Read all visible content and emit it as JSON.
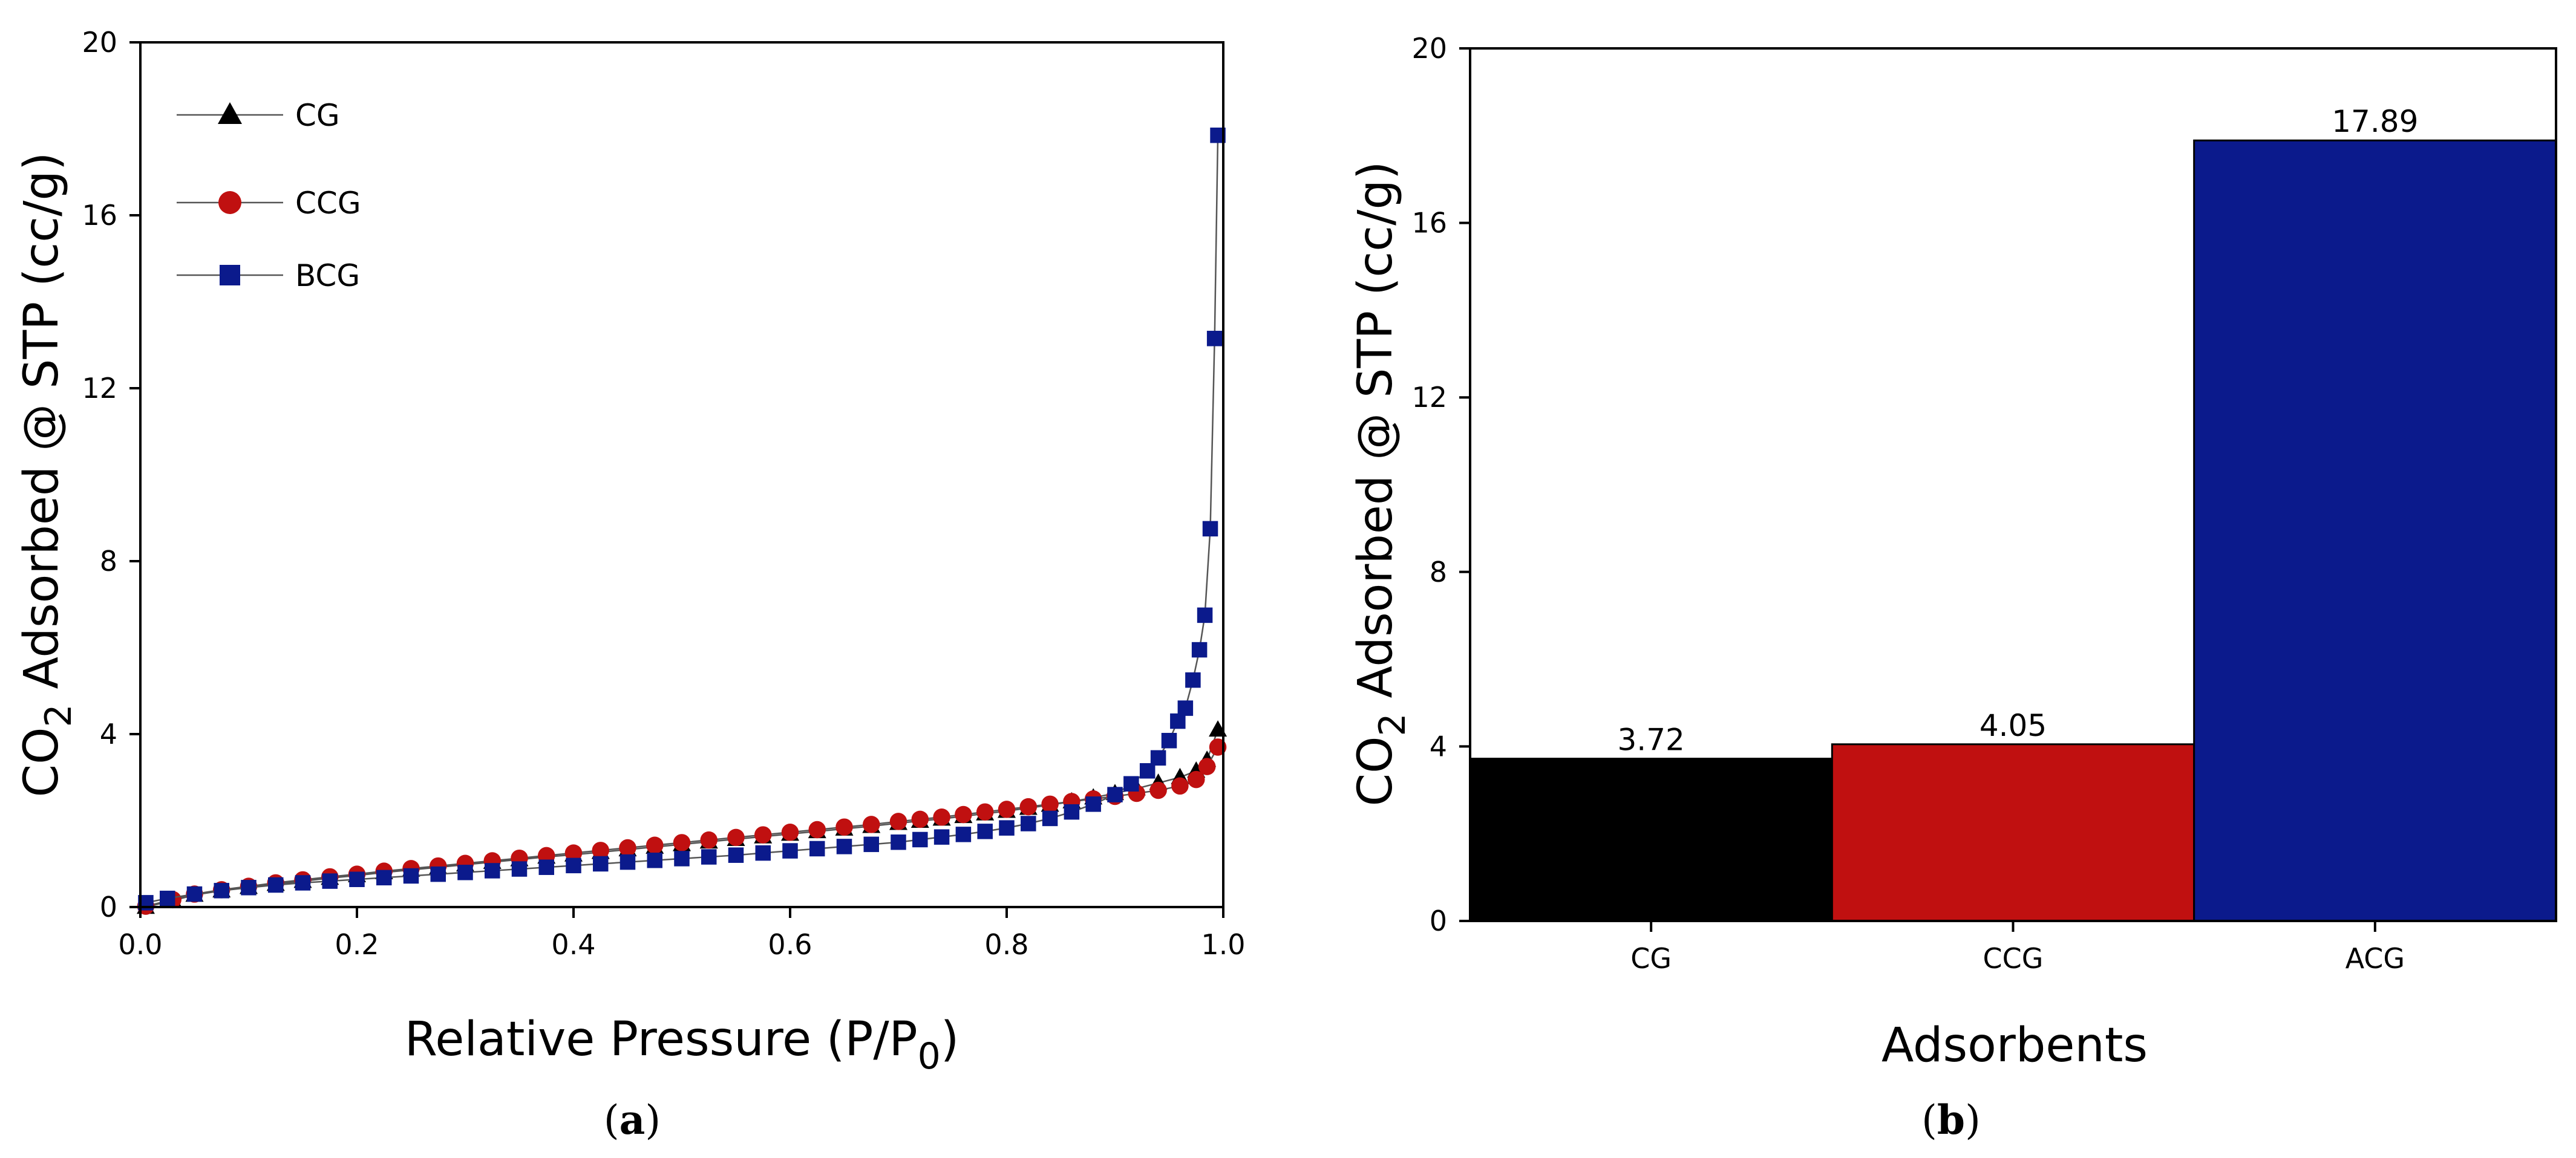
{
  "chart_data": [
    {
      "type": "scatter",
      "panel_label": "a",
      "xlabel": "Relative Pressure (P/P",
      "xlabel_sub": "0",
      "xlabel_suffix": ")",
      "ylabel_prefix": "CO",
      "ylabel_sub": "2",
      "ylabel_suffix": " Adsorbed @ STP (cc/g)",
      "xlim": [
        0,
        1.0
      ],
      "ylim": [
        0,
        20
      ],
      "xticks": [
        "0.0",
        "0.2",
        "0.4",
        "0.6",
        "0.8",
        "1.0"
      ],
      "xtick_values": [
        0,
        0.2,
        0.4,
        0.6,
        0.8,
        1.0
      ],
      "yticks": [
        "0",
        "4",
        "8",
        "12",
        "16",
        "20"
      ],
      "ytick_values": [
        0,
        4,
        8,
        12,
        16,
        20
      ],
      "legend_position": "top-left",
      "series": [
        {
          "name": "CG",
          "marker": "triangle",
          "color": "#000000",
          "x": [
            0.005,
            0.03,
            0.05,
            0.075,
            0.1,
            0.125,
            0.15,
            0.175,
            0.2,
            0.225,
            0.25,
            0.275,
            0.3,
            0.325,
            0.35,
            0.375,
            0.4,
            0.425,
            0.45,
            0.475,
            0.5,
            0.525,
            0.55,
            0.575,
            0.6,
            0.625,
            0.65,
            0.675,
            0.7,
            0.72,
            0.74,
            0.76,
            0.78,
            0.8,
            0.82,
            0.84,
            0.86,
            0.88,
            0.9,
            0.92,
            0.94,
            0.96,
            0.975,
            0.985,
            0.995
          ],
          "y": [
            0.0,
            0.15,
            0.28,
            0.38,
            0.46,
            0.53,
            0.6,
            0.67,
            0.73,
            0.8,
            0.86,
            0.92,
            0.98,
            1.04,
            1.1,
            1.16,
            1.21,
            1.27,
            1.33,
            1.39,
            1.45,
            1.51,
            1.57,
            1.63,
            1.69,
            1.75,
            1.81,
            1.87,
            1.94,
            1.99,
            2.04,
            2.1,
            2.16,
            2.22,
            2.29,
            2.36,
            2.44,
            2.53,
            2.63,
            2.74,
            2.87,
            3.0,
            3.15,
            3.4,
            4.1
          ]
        },
        {
          "name": "CCG",
          "marker": "circle",
          "color": "#c01010",
          "x": [
            0.005,
            0.03,
            0.05,
            0.075,
            0.1,
            0.125,
            0.15,
            0.175,
            0.2,
            0.225,
            0.25,
            0.275,
            0.3,
            0.325,
            0.35,
            0.375,
            0.4,
            0.425,
            0.45,
            0.475,
            0.5,
            0.525,
            0.55,
            0.575,
            0.6,
            0.625,
            0.65,
            0.675,
            0.7,
            0.72,
            0.74,
            0.76,
            0.78,
            0.8,
            0.82,
            0.84,
            0.86,
            0.88,
            0.9,
            0.92,
            0.94,
            0.96,
            0.975,
            0.985,
            0.995
          ],
          "y": [
            0.02,
            0.17,
            0.3,
            0.4,
            0.48,
            0.56,
            0.63,
            0.7,
            0.76,
            0.83,
            0.89,
            0.95,
            1.01,
            1.07,
            1.13,
            1.19,
            1.25,
            1.31,
            1.37,
            1.43,
            1.49,
            1.55,
            1.61,
            1.67,
            1.73,
            1.79,
            1.85,
            1.91,
            1.98,
            2.03,
            2.08,
            2.14,
            2.2,
            2.26,
            2.32,
            2.38,
            2.44,
            2.5,
            2.56,
            2.63,
            2.7,
            2.8,
            2.95,
            3.25,
            3.7
          ]
        },
        {
          "name": "BCG",
          "marker": "square",
          "color": "#0b1a8c",
          "x": [
            0.005,
            0.025,
            0.05,
            0.075,
            0.1,
            0.125,
            0.15,
            0.175,
            0.2,
            0.225,
            0.25,
            0.275,
            0.3,
            0.325,
            0.35,
            0.375,
            0.4,
            0.425,
            0.45,
            0.475,
            0.5,
            0.525,
            0.55,
            0.575,
            0.6,
            0.625,
            0.65,
            0.675,
            0.7,
            0.72,
            0.74,
            0.76,
            0.78,
            0.8,
            0.82,
            0.84,
            0.86,
            0.88,
            0.9,
            0.915,
            0.93,
            0.94,
            0.95,
            0.958,
            0.965,
            0.972,
            0.978,
            0.983,
            0.988,
            0.992,
            0.995
          ],
          "y": [
            0.1,
            0.2,
            0.3,
            0.38,
            0.45,
            0.51,
            0.56,
            0.6,
            0.64,
            0.68,
            0.72,
            0.76,
            0.8,
            0.84,
            0.88,
            0.92,
            0.96,
            1.0,
            1.04,
            1.08,
            1.12,
            1.16,
            1.2,
            1.25,
            1.3,
            1.35,
            1.4,
            1.45,
            1.5,
            1.56,
            1.62,
            1.68,
            1.75,
            1.83,
            1.93,
            2.05,
            2.2,
            2.38,
            2.6,
            2.85,
            3.15,
            3.45,
            3.85,
            4.3,
            4.6,
            5.25,
            5.95,
            6.75,
            8.75,
            13.15,
            17.85
          ]
        }
      ]
    },
    {
      "type": "bar",
      "panel_label": "b",
      "xlabel": "Adsorbents",
      "ylabel_prefix": "CO",
      "ylabel_sub": "2",
      "ylabel_suffix": " Adsorbed @ STP (cc/g)",
      "ylim": [
        0,
        20
      ],
      "yticks": [
        "0",
        "4",
        "8",
        "12",
        "16",
        "20"
      ],
      "ytick_values": [
        0,
        4,
        8,
        12,
        16,
        20
      ],
      "categories": [
        "CG",
        "CCG",
        "ACG"
      ],
      "values": [
        3.72,
        4.05,
        17.89
      ],
      "value_labels": [
        "3.72",
        "4.05",
        "17.89"
      ],
      "colors": [
        "#000000",
        "#c01010",
        "#0b1a8c"
      ]
    }
  ]
}
